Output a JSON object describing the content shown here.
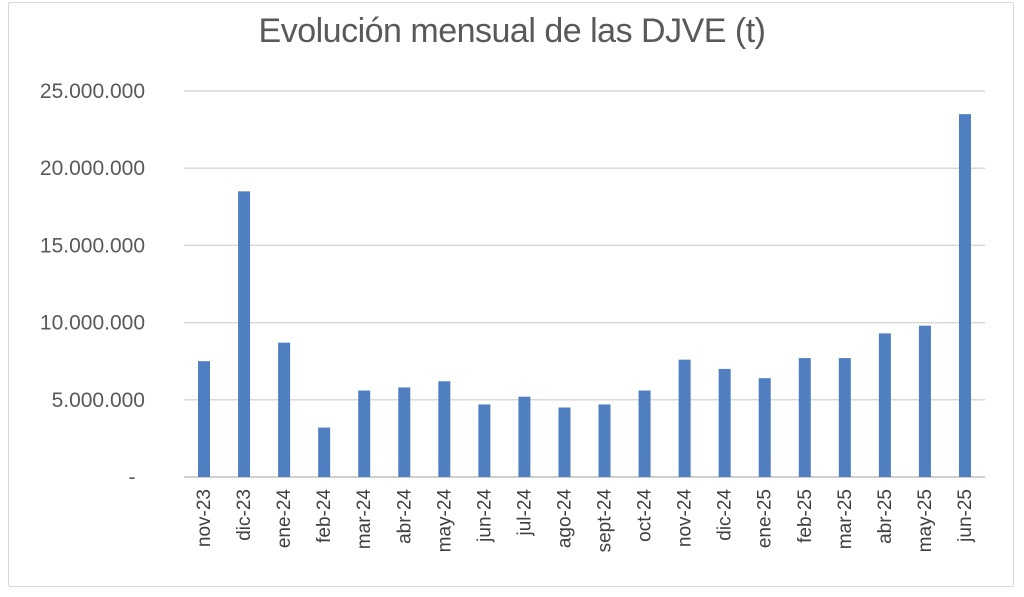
{
  "chart_data": {
    "type": "bar",
    "title": "Evolución mensual de las DJVE (t)",
    "categories": [
      "nov-23",
      "dic-23",
      "ene-24",
      "feb-24",
      "mar-24",
      "abr-24",
      "may-24",
      "jun-24",
      "jul-24",
      "ago-24",
      "sept-24",
      "oct-24",
      "nov-24",
      "dic-24",
      "ene-25",
      "feb-25",
      "mar-25",
      "abr-25",
      "may-25",
      "jun-25"
    ],
    "values": [
      7500000,
      18500000,
      8700000,
      3200000,
      5600000,
      5800000,
      6200000,
      4700000,
      5200000,
      4500000,
      4700000,
      5600000,
      7600000,
      7000000,
      6400000,
      7700000,
      7700000,
      9300000,
      9800000,
      23500000
    ],
    "ylim": [
      0,
      25000000
    ],
    "yticks": [
      0,
      5000000,
      10000000,
      15000000,
      20000000,
      25000000
    ],
    "ytick_labels": [
      "-",
      "5.000.000",
      "10.000.000",
      "15.000.000",
      "20.000.000",
      "25.000.000"
    ],
    "xlabel": "",
    "ylabel": "",
    "grid": true,
    "bar_color": "#4f7ec1"
  }
}
